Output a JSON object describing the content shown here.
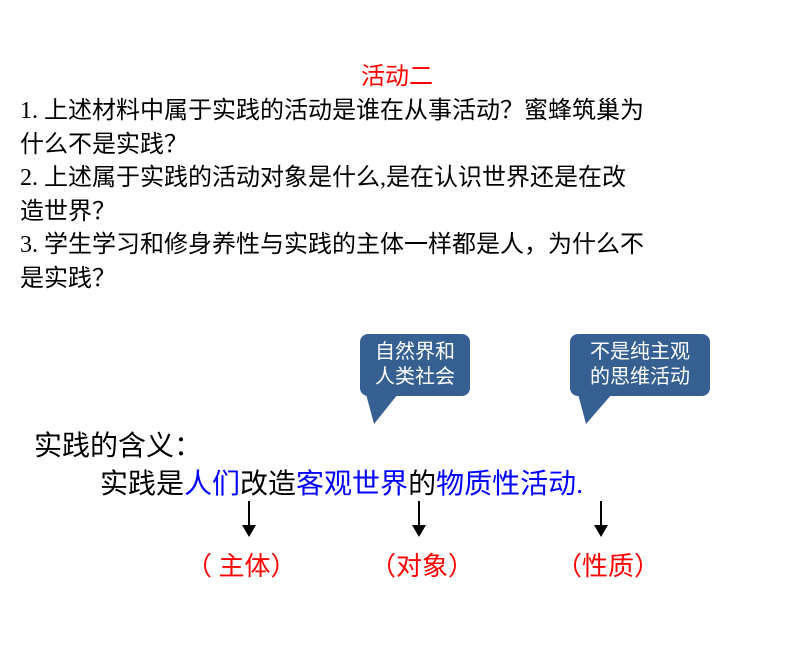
{
  "title": {
    "text": "活动二",
    "color": "#ff0000"
  },
  "questions": {
    "q1_a": " 1. 上述材料中属于实践的活动是谁在从事活动？蜜蜂筑巢为",
    "q1_b": "什么不是实践？",
    "q2_a": " 2. 上述属于实践的活动对象是什么,是在认识世界还是在改",
    "q2_b": "造世界？",
    "q3_a": " 3. 学生学习和修身养性与实践的主体一样都是人，为什么不",
    "q3_b": "是实践？"
  },
  "callouts": {
    "c1_line1": "自然界和",
    "c1_line2": "人类社会",
    "c2_line1": "不是纯主观",
    "c2_line2": "的思维活动",
    "bg_color": "#376092",
    "text_color": "#ffffff"
  },
  "definition": {
    "label": "实践的含义：",
    "prefix": "实践是",
    "subject": "人们",
    "mid1": "改造",
    "object": "客观世界",
    "mid2": "的",
    "nature": "物质性活动",
    "period": "."
  },
  "roles": {
    "r1": "（ 主体）",
    "r2": "（对象）",
    "r3": "（性质）",
    "color": "#ff0000"
  },
  "colors": {
    "blue": "#0000ff",
    "black": "#000000"
  }
}
